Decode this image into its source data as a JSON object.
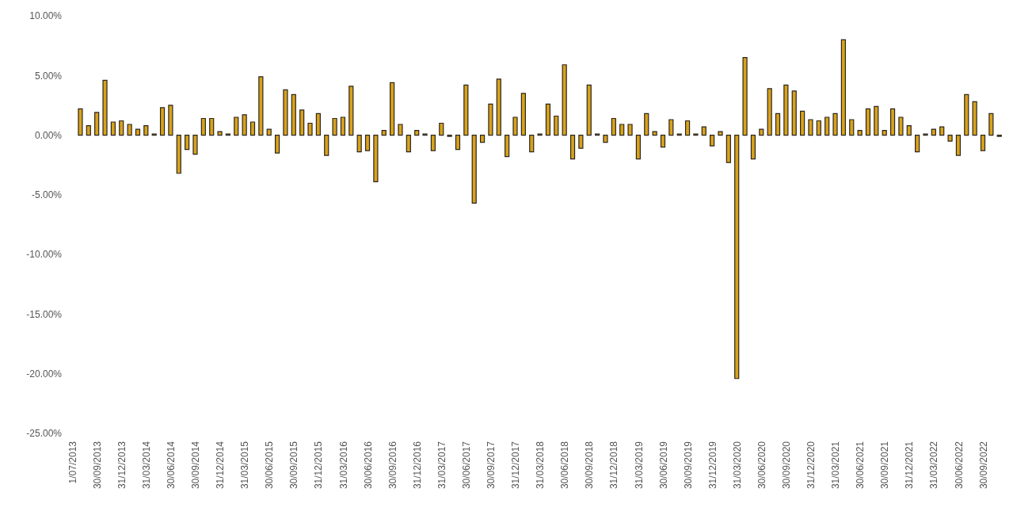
{
  "chart_data": {
    "type": "bar",
    "categories": [
      "1/07/2013",
      null,
      null,
      "30/09/2013",
      null,
      null,
      "31/12/2013",
      null,
      null,
      "31/03/2014",
      null,
      null,
      "30/06/2014",
      null,
      null,
      "30/09/2014",
      null,
      null,
      "31/12/2014",
      null,
      null,
      "31/03/2015",
      null,
      null,
      "30/06/2015",
      null,
      null,
      "30/09/2015",
      null,
      null,
      "31/12/2015",
      null,
      null,
      "31/03/2016",
      null,
      null,
      "30/06/2016",
      null,
      null,
      "30/09/2016",
      null,
      null,
      "31/12/2016",
      null,
      null,
      "31/03/2017",
      null,
      null,
      "30/06/2017",
      null,
      null,
      "30/09/2017",
      null,
      null,
      "31/12/2017",
      null,
      null,
      "31/03/2018",
      null,
      null,
      "30/06/2018",
      null,
      null,
      "30/09/2018",
      null,
      null,
      "31/12/2018",
      null,
      null,
      "31/03/2019",
      null,
      null,
      "30/06/2019",
      null,
      null,
      "30/09/2019",
      null,
      null,
      "31/12/2019",
      null,
      null,
      "31/03/2020",
      null,
      null,
      "30/06/2020",
      null,
      null,
      "30/09/2020",
      null,
      null,
      "31/12/2020",
      null,
      null,
      "31/03/2021",
      null,
      null,
      "30/06/2021",
      null,
      null,
      "30/09/2021",
      null,
      null,
      "31/12/2021",
      null,
      null,
      "31/03/2022",
      null,
      null,
      "30/06/2022",
      null,
      null,
      "30/09/2022",
      null,
      null
    ],
    "values": [
      0,
      2.2,
      0.8,
      1.9,
      4.6,
      1.1,
      1.2,
      0.9,
      0.5,
      0.8,
      0.1,
      2.3,
      2.5,
      -3.2,
      -1.2,
      -1.6,
      1.4,
      1.4,
      0.3,
      0.1,
      1.5,
      1.7,
      1.1,
      4.9,
      0.5,
      -1.5,
      3.8,
      3.4,
      2.1,
      1.0,
      1.8,
      -1.7,
      1.4,
      1.5,
      4.1,
      -1.4,
      -1.3,
      -3.9,
      0.4,
      4.4,
      0.9,
      -1.4,
      0.4,
      0.1,
      -1.3,
      1.0,
      -0.1,
      -1.2,
      4.2,
      -5.7,
      -0.6,
      2.6,
      4.7,
      -1.8,
      1.5,
      3.5,
      -1.4,
      0.1,
      2.6,
      1.6,
      5.9,
      -2.0,
      -1.1,
      4.2,
      0.1,
      -0.6,
      1.4,
      0.9,
      0.9,
      -2.0,
      1.8,
      0.3,
      -1.0,
      1.3,
      0.1,
      1.2,
      0.1,
      0.7,
      -0.9,
      0.3,
      -2.3,
      -20.4,
      6.5,
      -2.0,
      0.5,
      3.9,
      1.8,
      4.2,
      3.7,
      2.0,
      1.3,
      1.2,
      1.5,
      1.8,
      8.0,
      1.3,
      0.4,
      2.2,
      2.4,
      0.4,
      2.2,
      1.5,
      0.8,
      -1.4,
      0.1,
      0.5,
      0.7,
      -0.5,
      -1.7,
      3.4,
      2.8,
      -1.3,
      1.8,
      -0.1
    ],
    "color": "#d9a21b",
    "ylim": [
      -25,
      10
    ],
    "yticks": [
      {
        "value": 10,
        "label": "10.00%"
      },
      {
        "value": 5,
        "label": "5.00%"
      },
      {
        "value": 0,
        "label": "0.00%"
      },
      {
        "value": -5,
        "label": "-5.00%"
      },
      {
        "value": -10,
        "label": "-10.00%"
      },
      {
        "value": -15,
        "label": "-15.00%"
      },
      {
        "value": -20,
        "label": "-20.00%"
      },
      {
        "value": -25,
        "label": "-25.00%"
      }
    ],
    "grid": false,
    "legend": false
  }
}
